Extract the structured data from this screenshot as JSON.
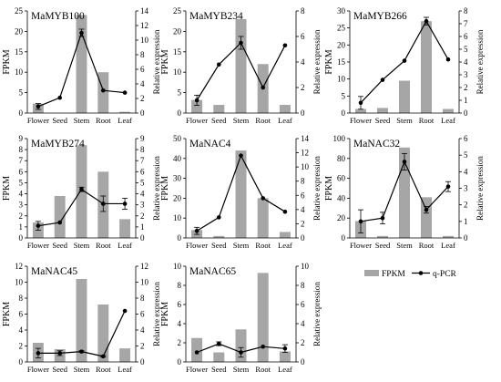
{
  "categories": [
    "Flower",
    "Seed",
    "Stem",
    "Root",
    "Leaf"
  ],
  "left_axis_label": "FPKM",
  "right_axis_label": "Relative expression",
  "legend": {
    "bars": "FPKM",
    "line": "q-PCR",
    "position": "bottom-right"
  },
  "colors": {
    "bars": "#a6a6a6",
    "line": "#000000"
  },
  "chart_data": [
    {
      "type": "bar",
      "title": "MaMYB100",
      "left_ylim": [
        0,
        25
      ],
      "left_ticks": [
        0,
        5,
        10,
        15,
        20,
        25
      ],
      "right_ylim": [
        0,
        14
      ],
      "right_ticks": [
        0,
        2,
        4,
        6,
        8,
        10,
        12,
        14
      ],
      "fpkm": [
        2.3,
        0,
        24,
        10,
        0.3
      ],
      "qpcr": [
        0.9,
        2.1,
        11.0,
        3.1,
        2.8
      ],
      "qpcr_err": [
        0.4,
        0,
        0.5,
        0,
        0
      ]
    },
    {
      "type": "bar",
      "title": "MaMYB234",
      "left_ylim": [
        0,
        25
      ],
      "left_ticks": [
        0,
        5,
        10,
        15,
        20,
        25
      ],
      "right_ylim": [
        0,
        8
      ],
      "right_ticks": [
        0,
        2,
        4,
        6,
        8
      ],
      "fpkm": [
        3.2,
        2,
        23,
        12,
        2
      ],
      "qpcr": [
        1.0,
        3.8,
        5.5,
        2.0,
        5.3
      ],
      "qpcr_err": [
        0.4,
        0,
        0.5,
        0,
        0
      ]
    },
    {
      "type": "bar",
      "title": "MaMYB266",
      "left_ylim": [
        0,
        30
      ],
      "left_ticks": [
        0,
        5,
        10,
        15,
        20,
        25,
        30
      ],
      "right_ylim": [
        0,
        8
      ],
      "right_ticks": [
        0,
        1,
        2,
        3,
        4,
        5,
        6,
        7,
        8
      ],
      "fpkm": [
        1.2,
        1.5,
        9.5,
        27,
        1.2
      ],
      "qpcr": [
        0.8,
        2.6,
        4.1,
        7.2,
        4.2
      ],
      "qpcr_err": [
        0.5,
        0,
        0,
        0.3,
        0
      ]
    },
    {
      "type": "bar",
      "title": "MaMYB274",
      "left_ylim": [
        0,
        9
      ],
      "left_ticks": [
        0,
        1,
        2,
        3,
        4,
        5,
        6,
        7,
        8,
        9
      ],
      "right_ylim": [
        0,
        9
      ],
      "right_ticks": [
        0,
        1,
        2,
        3,
        4,
        5,
        6,
        7,
        8,
        9
      ],
      "fpkm": [
        1.4,
        3.8,
        8.4,
        6,
        1.7
      ],
      "qpcr": [
        1.1,
        1.4,
        4.4,
        3.1,
        3.1
      ],
      "qpcr_err": [
        0.4,
        0,
        0.2,
        0.7,
        0.5
      ]
    },
    {
      "type": "bar",
      "title": "MaNAC4",
      "left_ylim": [
        0,
        50
      ],
      "left_ticks": [
        0,
        10,
        20,
        30,
        40,
        50
      ],
      "right_ylim": [
        0,
        14
      ],
      "right_ticks": [
        0,
        2,
        4,
        6,
        8,
        10,
        12,
        14
      ],
      "fpkm": [
        4,
        1,
        44,
        20,
        3
      ],
      "qpcr": [
        1.0,
        2.9,
        11.6,
        5.6,
        3.7
      ],
      "qpcr_err": [
        0.5,
        0,
        0,
        0,
        0
      ]
    },
    {
      "type": "bar",
      "title": "MaNAC32",
      "left_ylim": [
        0,
        100
      ],
      "left_ticks": [
        0,
        20,
        40,
        60,
        80,
        100
      ],
      "right_ylim": [
        0,
        6
      ],
      "right_ticks": [
        0,
        1,
        2,
        3,
        4,
        5,
        6
      ],
      "fpkm": [
        17,
        2,
        91,
        41,
        2
      ],
      "qpcr": [
        1.0,
        1.2,
        4.6,
        1.7,
        3.1
      ],
      "qpcr_err": [
        0.7,
        0.35,
        0.5,
        0.2,
        0.3
      ]
    },
    {
      "type": "bar",
      "title": "MaNAC45",
      "left_ylim": [
        0,
        12
      ],
      "left_ticks": [
        0,
        2,
        4,
        6,
        8,
        10,
        12
      ],
      "right_ylim": [
        0,
        12
      ],
      "right_ticks": [
        0,
        2,
        4,
        6,
        8,
        10,
        12
      ],
      "fpkm": [
        2.4,
        1.6,
        10.4,
        7.2,
        1.7
      ],
      "qpcr": [
        1.1,
        1.1,
        1.3,
        0.7,
        6.4
      ],
      "qpcr_err": [
        0.6,
        0.3,
        0.1,
        0.1,
        0
      ]
    },
    {
      "type": "bar",
      "title": "MaNAC65",
      "left_ylim": [
        0,
        10
      ],
      "left_ticks": [
        0,
        2,
        4,
        6,
        8,
        10
      ],
      "right_ylim": [
        0,
        10
      ],
      "right_ticks": [
        0,
        2,
        4,
        6,
        8,
        10
      ],
      "fpkm": [
        2.5,
        1,
        3.4,
        9.3,
        1.1
      ],
      "qpcr": [
        1.0,
        1.9,
        1.0,
        1.6,
        1.4
      ],
      "qpcr_err": [
        0,
        0.2,
        0.5,
        0,
        0.4
      ]
    }
  ]
}
